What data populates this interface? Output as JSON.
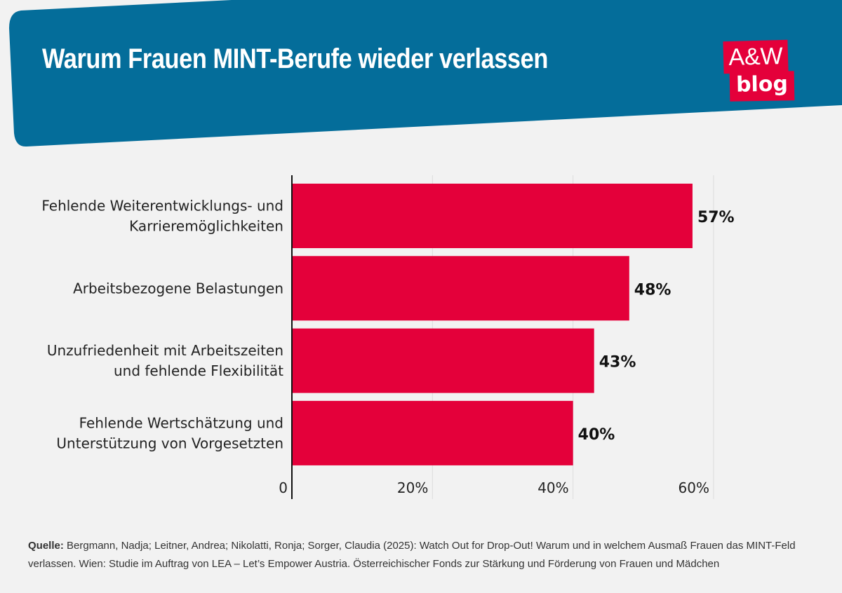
{
  "header": {
    "title": "Warum Frauen MINT-Berufe wieder verlassen",
    "logo_top": "A&W",
    "logo_bottom": "blog",
    "color": "#046d9a"
  },
  "chart_data": {
    "type": "bar",
    "orientation": "horizontal",
    "categories": [
      [
        "Fehlende Weiterentwicklungs- und",
        "Karrieremöglichkeiten"
      ],
      [
        "Arbeitsbezogene Belastungen"
      ],
      [
        "Unzufriedenheit mit Arbeitszeiten",
        "und fehlende Flexibilität"
      ],
      [
        "Fehlende Wertschätzung und",
        "Unterstützung von Vorgesetzten"
      ]
    ],
    "values": [
      57,
      48,
      43,
      40
    ],
    "data_labels": [
      "57%",
      "48%",
      "43%",
      "40%"
    ],
    "xlim": [
      0,
      60
    ],
    "xticks": [
      0,
      20,
      40,
      60
    ],
    "xtick_labels": [
      "0",
      "20%",
      "40%",
      "60%"
    ],
    "grid": true,
    "bar_color": "#e4003a"
  },
  "source": {
    "label": "Quelle:",
    "text": " Bergmann, Nadja; Leitner, Andrea; Nikolatti, Ronja; Sorger, Claudia (2025): Watch Out for Drop-Out! Warum und in welchem Ausmaß Frauen das MINT-Feld verlassen. Wien: Studie im Auftrag von LEA – Let’s Empower Austria. Österreichischer Fonds zur Stärkung und Förderung von Frauen und Mädchen"
  }
}
